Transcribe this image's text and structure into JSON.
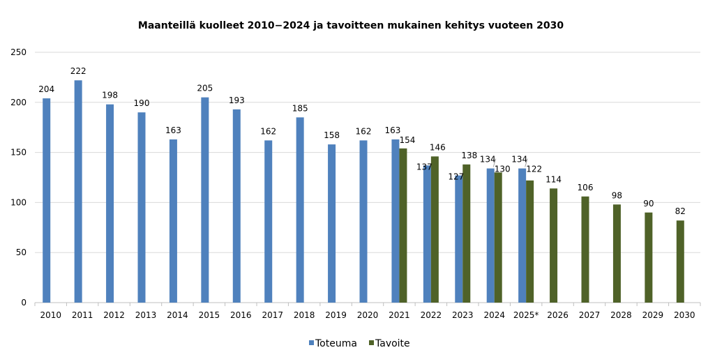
{
  "chart_data": {
    "type": "bar",
    "title": "Maanteillä kuolleet 2010−2024 ja tavoitteen mukainen kehitys vuoteen 2030",
    "xlabel": "",
    "ylabel": "",
    "categories": [
      "2010",
      "2011",
      "2012",
      "2013",
      "2014",
      "2015",
      "2016",
      "2017",
      "2018",
      "2019",
      "2020",
      "2021",
      "2022",
      "2023",
      "2024",
      "2025*",
      "2026",
      "2027",
      "2028",
      "2029",
      "2030"
    ],
    "ylim": [
      0,
      250
    ],
    "yticks": [
      "0",
      "50",
      "100",
      "150",
      "200",
      "250"
    ],
    "grid": true,
    "legend": "bottom",
    "colors": {
      "Toteuma": "#4f81bd",
      "Tavoite": "#4f6228"
    },
    "series": [
      {
        "name": "Toteuma",
        "values": [
          204,
          222,
          198,
          190,
          163,
          205,
          193,
          162,
          185,
          158,
          162,
          163,
          137,
          127,
          134,
          134,
          null,
          null,
          null,
          null,
          null
        ]
      },
      {
        "name": "Tavoite",
        "values": [
          null,
          null,
          null,
          null,
          null,
          null,
          null,
          null,
          null,
          null,
          null,
          154,
          146,
          138,
          130,
          122,
          114,
          106,
          98,
          90,
          82
        ]
      }
    ]
  }
}
